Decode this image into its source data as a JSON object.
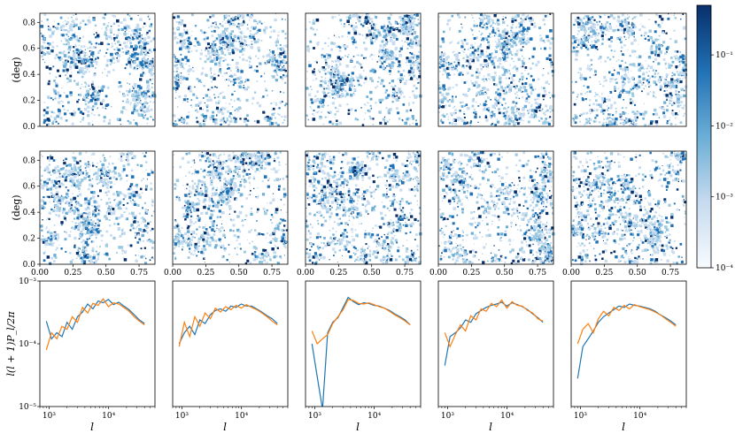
{
  "figure": {
    "map_ylabel": "(deg)",
    "spectrum_ylabel": "l(l + 1)P_l/2π",
    "spectrum_xlabel": "l",
    "colorbar_ticks": [
      "10⁻¹",
      "10⁻²",
      "10⁻³",
      "10⁻⁴"
    ]
  },
  "chart_data": [
    {
      "type": "heatmap",
      "panel": "density maps (2 rows × 5 columns)",
      "rows": 2,
      "cols": 5,
      "xlim": [
        0,
        0.87
      ],
      "ylim": [
        0,
        0.87
      ],
      "x_ticks": [
        "0.00",
        "0.25",
        "0.50",
        "0.75"
      ],
      "y_ticks": [
        "0.0",
        "0.2",
        "0.4",
        "0.6",
        "0.8"
      ],
      "ylabel": "(deg)",
      "colorbar": {
        "scale": "log",
        "range": [
          0.0001,
          0.5
        ],
        "colormap": "Blues",
        "ticks": [
          "10⁻¹",
          "10⁻²",
          "10⁻³",
          "10⁻⁴"
        ]
      },
      "colors": {
        "high": "#08306b",
        "mid": "#2171b5",
        "low": "#c6dbef",
        "none": "#ffffff"
      }
    },
    {
      "type": "line",
      "panel": "power spectra (1 row × 5 columns)",
      "xscale": "log",
      "yscale": "log",
      "xlim": [
        700,
        60000
      ],
      "ylim": [
        1e-05,
        0.001
      ],
      "x_ticks": [
        "10³",
        "10⁴"
      ],
      "y_ticks": [
        "10⁻³",
        "10⁻⁴",
        "10⁻⁵"
      ],
      "xlabel": "l",
      "ylabel": "l(l + 1)P_l/2π",
      "series_colors": [
        "#1f77b4",
        "#ff7f0e"
      ],
      "l": [
        900,
        1100,
        1350,
        1650,
        2000,
        2450,
        3000,
        3650,
        4450,
        5450,
        6650,
        8100,
        9900,
        12100,
        14800,
        18000,
        22000,
        26900,
        32800,
        40000
      ],
      "panels": [
        {
          "series": [
            {
              "values": [
                0.00023,
                0.00012,
                0.00015,
                0.00013,
                0.00022,
                0.00017,
                0.00027,
                0.00032,
                0.00043,
                0.00036,
                0.00048,
                0.00045,
                0.00051,
                0.00042,
                0.00046,
                0.0004,
                0.00035,
                0.00029,
                0.00024,
                0.00021
              ]
            },
            {
              "values": [
                8e-05,
                0.00015,
                0.00012,
                0.00019,
                0.00017,
                0.00027,
                0.00022,
                0.00038,
                0.00031,
                0.00044,
                0.00041,
                0.00052,
                0.00039,
                0.00045,
                0.00043,
                0.00038,
                0.00033,
                0.00027,
                0.00023,
                0.0002
              ]
            }
          ]
        },
        {
          "series": [
            {
              "values": [
                0.0001,
                0.00015,
                0.00019,
                0.00014,
                0.00024,
                0.00021,
                0.00029,
                0.00034,
                0.00036,
                0.00033,
                0.0004,
                0.00038,
                0.00043,
                0.0004,
                0.0004,
                0.00036,
                0.00032,
                0.00028,
                0.00025,
                0.00021
              ]
            },
            {
              "values": [
                9e-05,
                0.00022,
                0.00013,
                0.00027,
                0.00019,
                0.00031,
                0.00025,
                0.00037,
                0.00032,
                0.00039,
                0.00035,
                0.00041,
                0.00037,
                0.00042,
                0.00038,
                0.00035,
                0.00031,
                0.00027,
                0.00023,
                0.0002
              ]
            }
          ]
        },
        {
          "series": [
            {
              "values": [
                0.0001,
                3e-05,
                9e-06,
                0.00015,
                0.00022,
                0.00026,
                0.00038,
                0.00055,
                0.00047,
                0.00042,
                0.00045,
                0.00044,
                0.00041,
                0.0004,
                0.00037,
                0.00034,
                0.0003,
                0.00027,
                0.00024,
                0.0002
              ]
            },
            {
              "values": [
                0.00016,
                0.0001,
                0.00012,
                0.00014,
                0.00021,
                0.00027,
                0.00035,
                0.00051,
                0.00049,
                0.00044,
                0.00043,
                0.00045,
                0.00042,
                0.00039,
                0.00037,
                0.00033,
                0.00029,
                0.00026,
                0.00023,
                0.0002
              ]
            }
          ]
        },
        {
          "series": [
            {
              "values": [
                4.5e-05,
                0.00013,
                0.00015,
                0.00018,
                0.00024,
                0.00022,
                0.0003,
                0.00034,
                0.00038,
                0.00041,
                0.00043,
                0.00046,
                0.0004,
                0.00045,
                0.00042,
                0.00039,
                0.00035,
                0.0003,
                0.00026,
                0.00022
              ]
            },
            {
              "values": [
                0.00015,
                9e-05,
                0.00014,
                0.0002,
                0.00016,
                0.00028,
                0.00024,
                0.00036,
                0.00033,
                0.00044,
                0.00039,
                0.0005,
                0.00037,
                0.00047,
                0.00041,
                0.0004,
                0.00034,
                0.00031,
                0.00025,
                0.00023
              ]
            }
          ]
        },
        {
          "series": [
            {
              "values": [
                2.8e-05,
                9e-05,
                0.00012,
                0.00016,
                0.00022,
                0.00027,
                0.00031,
                0.00035,
                0.0004,
                0.00038,
                0.00043,
                0.00041,
                0.0004,
                0.00038,
                0.00036,
                0.00033,
                0.00029,
                0.00026,
                0.00023,
                0.0002
              ]
            },
            {
              "values": [
                0.0001,
                0.00017,
                0.00021,
                0.00015,
                0.00025,
                0.00033,
                0.00028,
                0.00038,
                0.00034,
                0.00041,
                0.00036,
                0.00042,
                0.00039,
                0.00037,
                0.00035,
                0.00032,
                0.00029,
                0.00025,
                0.00022,
                0.00019
              ]
            }
          ]
        }
      ]
    }
  ]
}
